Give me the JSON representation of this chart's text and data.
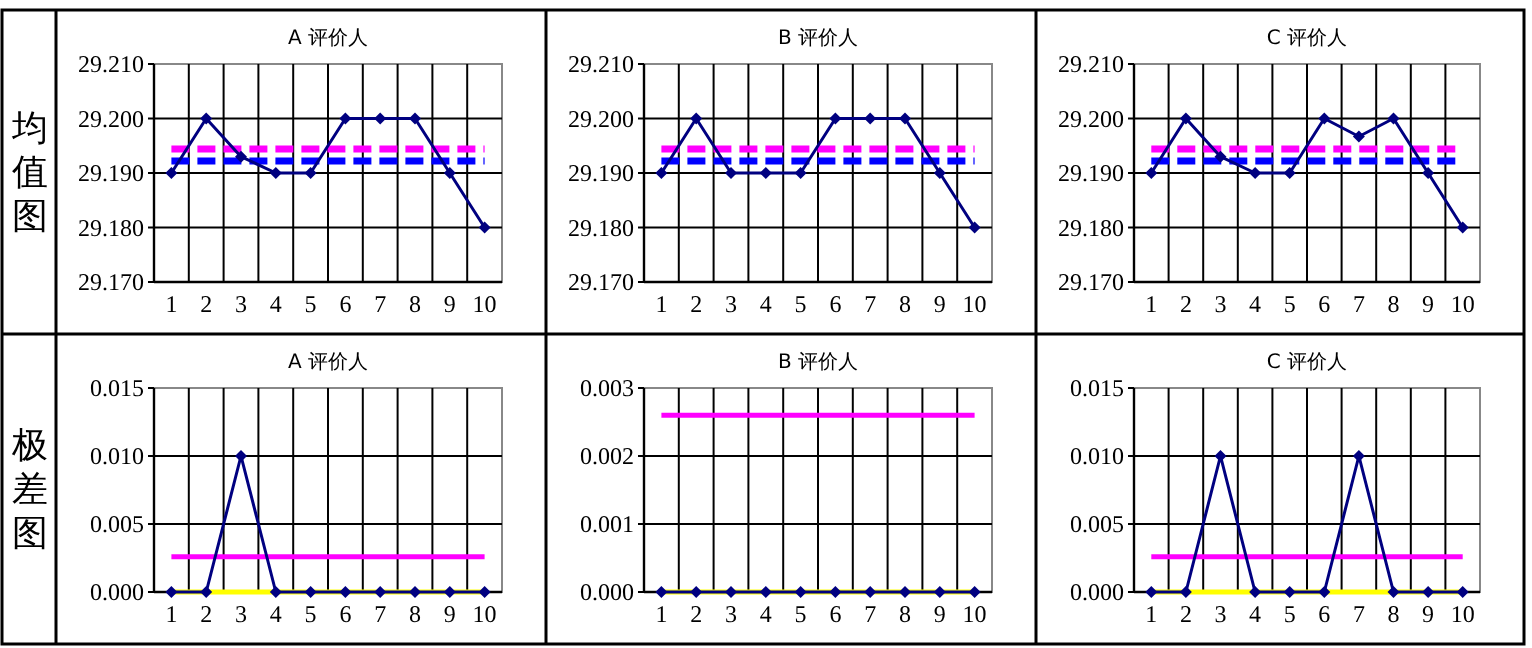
{
  "chart_data": [
    {
      "type": "line",
      "title": "A 评价人",
      "ylabel": "均值图",
      "categories": [
        "1",
        "2",
        "3",
        "4",
        "5",
        "6",
        "7",
        "8",
        "9",
        "10"
      ],
      "series": [
        {
          "color": "#000080",
          "values": [
            29.19,
            29.2,
            29.193,
            29.19,
            29.19,
            29.2,
            29.2,
            29.2,
            29.19,
            29.18
          ]
        }
      ],
      "ylim": [
        29.17,
        29.21
      ],
      "yticks": [
        {
          "value": 29.17,
          "label": "29.170"
        },
        {
          "value": 29.18,
          "label": "29.180"
        },
        {
          "value": 29.19,
          "label": "29.190"
        },
        {
          "value": 29.2,
          "label": "29.200"
        },
        {
          "value": 29.21,
          "label": "29.210"
        }
      ],
      "ref_lines": [
        {
          "axis": "y",
          "value": 29.1944,
          "color": "#ff00ff",
          "line_style": "dashed"
        },
        {
          "axis": "y",
          "value": 29.1922,
          "color": "#0000ff",
          "line_style": "dashed"
        }
      ],
      "grid": true,
      "marker": "diamond",
      "line_style": "solid"
    },
    {
      "type": "line",
      "title": "B 评价人",
      "categories": [
        "1",
        "2",
        "3",
        "4",
        "5",
        "6",
        "7",
        "8",
        "9",
        "10"
      ],
      "series": [
        {
          "color": "#000080",
          "values": [
            29.19,
            29.2,
            29.19,
            29.19,
            29.19,
            29.2,
            29.2,
            29.2,
            29.19,
            29.18
          ]
        }
      ],
      "ylim": [
        29.17,
        29.21
      ],
      "yticks": [
        {
          "value": 29.17,
          "label": "29.170"
        },
        {
          "value": 29.18,
          "label": "29.180"
        },
        {
          "value": 29.19,
          "label": "29.190"
        },
        {
          "value": 29.2,
          "label": "29.200"
        },
        {
          "value": 29.21,
          "label": "29.210"
        }
      ],
      "ref_lines": [
        {
          "axis": "y",
          "value": 29.1944,
          "color": "#ff00ff",
          "line_style": "dashed"
        },
        {
          "axis": "y",
          "value": 29.1922,
          "color": "#0000ff",
          "line_style": "dashed"
        }
      ],
      "grid": true,
      "marker": "diamond",
      "line_style": "solid"
    },
    {
      "type": "line",
      "title": "C 评价人",
      "categories": [
        "1",
        "2",
        "3",
        "4",
        "5",
        "6",
        "7",
        "8",
        "9",
        "10"
      ],
      "series": [
        {
          "color": "#000080",
          "values": [
            29.19,
            29.2,
            29.193,
            29.19,
            29.19,
            29.2,
            29.1967,
            29.2,
            29.19,
            29.18
          ]
        }
      ],
      "ylim": [
        29.17,
        29.21
      ],
      "yticks": [
        {
          "value": 29.17,
          "label": "29.170"
        },
        {
          "value": 29.18,
          "label": "29.180"
        },
        {
          "value": 29.19,
          "label": "29.190"
        },
        {
          "value": 29.2,
          "label": "29.200"
        },
        {
          "value": 29.21,
          "label": "29.210"
        }
      ],
      "ref_lines": [
        {
          "axis": "y",
          "value": 29.1944,
          "color": "#ff00ff",
          "line_style": "dashed"
        },
        {
          "axis": "y",
          "value": 29.1922,
          "color": "#0000ff",
          "line_style": "dashed"
        }
      ],
      "grid": true,
      "marker": "diamond",
      "line_style": "solid"
    },
    {
      "type": "line",
      "title": "A 评价人",
      "ylabel": "极差图",
      "categories": [
        "1",
        "2",
        "3",
        "4",
        "5",
        "6",
        "7",
        "8",
        "9",
        "10"
      ],
      "series": [
        {
          "color": "#000080",
          "values": [
            0,
            0,
            0.01,
            0,
            0,
            0,
            0,
            0,
            0,
            0
          ]
        }
      ],
      "ylim": [
        0,
        0.015
      ],
      "yticks": [
        {
          "value": 0,
          "label": "0.000"
        },
        {
          "value": 0.005,
          "label": "0.005"
        },
        {
          "value": 0.01,
          "label": "0.010"
        },
        {
          "value": 0.015,
          "label": "0.015"
        }
      ],
      "ref_lines": [
        {
          "axis": "y",
          "value": 0.0026,
          "color": "#ff00ff",
          "line_style": "solid"
        },
        {
          "axis": "y",
          "value": 0,
          "color": "#ffff00",
          "line_style": "solid"
        }
      ],
      "grid": true,
      "marker": "diamond",
      "line_style": "solid"
    },
    {
      "type": "line",
      "title": "B 评价人",
      "categories": [
        "1",
        "2",
        "3",
        "4",
        "5",
        "6",
        "7",
        "8",
        "9",
        "10"
      ],
      "series": [
        {
          "color": "#000080",
          "values": [
            0,
            0,
            0,
            0,
            0,
            0,
            0,
            0,
            0,
            0
          ]
        }
      ],
      "ylim": [
        0,
        0.003
      ],
      "yticks": [
        {
          "value": 0,
          "label": "0.000"
        },
        {
          "value": 0.001,
          "label": "0.001"
        },
        {
          "value": 0.002,
          "label": "0.002"
        },
        {
          "value": 0.003,
          "label": "0.003"
        }
      ],
      "ref_lines": [
        {
          "axis": "y",
          "value": 0.0026,
          "color": "#ff00ff",
          "line_style": "solid"
        },
        {
          "axis": "y",
          "value": 0,
          "color": "#ffff00",
          "line_style": "solid"
        }
      ],
      "grid": true,
      "marker": "diamond",
      "line_style": "solid"
    },
    {
      "type": "line",
      "title": "C 评价人",
      "categories": [
        "1",
        "2",
        "3",
        "4",
        "5",
        "6",
        "7",
        "8",
        "9",
        "10"
      ],
      "series": [
        {
          "color": "#000080",
          "values": [
            0,
            0,
            0.01,
            0,
            0,
            0,
            0.01,
            0,
            0,
            0
          ]
        }
      ],
      "ylim": [
        0,
        0.015
      ],
      "yticks": [
        {
          "value": 0,
          "label": "0.000"
        },
        {
          "value": 0.005,
          "label": "0.005"
        },
        {
          "value": 0.01,
          "label": "0.010"
        },
        {
          "value": 0.015,
          "label": "0.015"
        }
      ],
      "ref_lines": [
        {
          "axis": "y",
          "value": 0.0026,
          "color": "#ff00ff",
          "line_style": "solid"
        },
        {
          "axis": "y",
          "value": 0,
          "color": "#ffff00",
          "line_style": "solid"
        }
      ],
      "grid": true,
      "marker": "diamond",
      "line_style": "solid"
    }
  ]
}
